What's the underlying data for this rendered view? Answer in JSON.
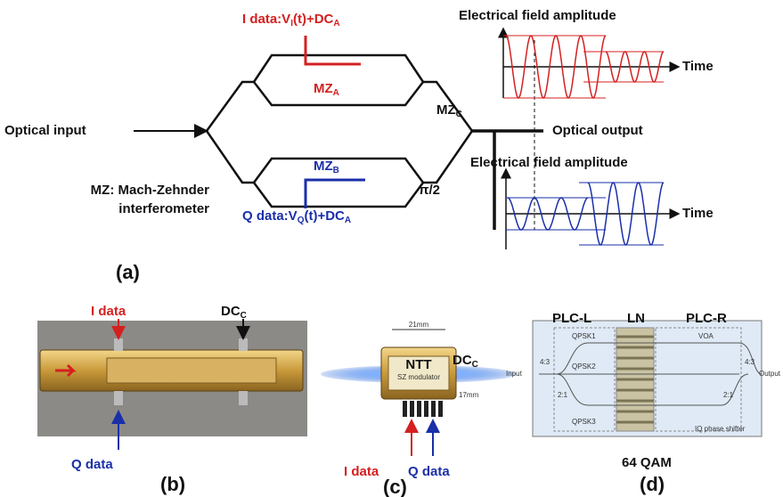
{
  "panel_a": {
    "label": "(a)",
    "optical_input": "Optical input",
    "optical_output": "Optical output",
    "i_data": [
      "I data:V",
      "I",
      "(t)+DC",
      "A"
    ],
    "q_data": [
      "Q data:V",
      "Q",
      "(t)+DC",
      "A"
    ],
    "mz_a": [
      "MZ",
      "A"
    ],
    "mz_b": [
      "MZ",
      "B"
    ],
    "mz_c": [
      "MZ",
      "C"
    ],
    "phase": "π/2",
    "note": [
      "MZ: Mach-Zehnder",
      "interferometer"
    ],
    "field_top": "Electrical field amplitude",
    "field_bottom": "Electrical field amplitude",
    "time_top": "Time",
    "time_bottom": "Time"
  },
  "panel_b": {
    "label": "(b)",
    "i_data": "I data",
    "dc": [
      "DC",
      "C"
    ],
    "q_data": "Q data"
  },
  "panel_c": {
    "label": "(c)",
    "dc": [
      "DC",
      "C"
    ],
    "i_data": "I data",
    "q_data": "Q data",
    "size_w": "21mm",
    "size_h": "17mm",
    "brand": "NTT",
    "device": "SZ modulator"
  },
  "panel_d": {
    "label": "(d)",
    "plc_l": "PLC-L",
    "ln": "LN",
    "plc_r": "PLC-R",
    "qpsk": [
      "QPSK1",
      "QPSK2",
      "QPSK3"
    ],
    "voa": "VOA",
    "ratio_in": "4:3",
    "ratio_out": "4:3",
    "split": [
      "2:1",
      "2:1"
    ],
    "input": "Input",
    "output": "Output",
    "shifter": "IQ phase shifter",
    "caption": "64 QAM"
  }
}
